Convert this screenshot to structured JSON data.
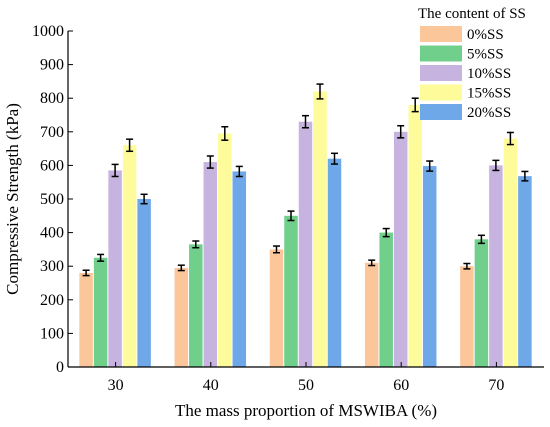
{
  "chart_data": {
    "type": "bar",
    "title": "",
    "xlabel": "The mass proportion of MSWIBA (%)",
    "ylabel": "Compressive Strength (kPa)",
    "ylim": [
      0,
      1000
    ],
    "yticks": [
      0,
      100,
      200,
      300,
      400,
      500,
      600,
      700,
      800,
      900,
      1000
    ],
    "categories": [
      "30",
      "40",
      "50",
      "60",
      "70"
    ],
    "legend": {
      "title": "The content of SS",
      "placement": "top-right"
    },
    "series": [
      {
        "name": "0%SS",
        "color": "#fbc79a",
        "values": [
          280,
          295,
          350,
          310,
          300
        ],
        "errors": [
          8,
          8,
          10,
          8,
          8
        ]
      },
      {
        "name": "5%SS",
        "color": "#6fcf8b",
        "values": [
          325,
          365,
          450,
          400,
          380
        ],
        "errors": [
          10,
          10,
          14,
          12,
          12
        ]
      },
      {
        "name": "10%SS",
        "color": "#c7b3e0",
        "values": [
          585,
          610,
          730,
          700,
          600
        ],
        "errors": [
          18,
          18,
          18,
          18,
          15
        ]
      },
      {
        "name": "15%SS",
        "color": "#fefc9a",
        "values": [
          660,
          695,
          820,
          780,
          680
        ],
        "errors": [
          18,
          20,
          22,
          20,
          18
        ]
      },
      {
        "name": "20%SS",
        "color": "#6fa8e8",
        "values": [
          500,
          582,
          620,
          598,
          568
        ],
        "errors": [
          14,
          15,
          16,
          15,
          14
        ]
      }
    ]
  }
}
